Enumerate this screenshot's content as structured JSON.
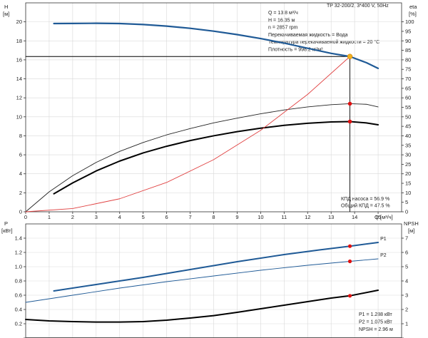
{
  "chart_data": [
    {
      "type": "line",
      "header": "TP 32-200/2, 3*400 V, 50Hz",
      "left_axis_label": "H",
      "left_axis_unit": "[м]",
      "right_axis_label": "eta",
      "right_axis_unit": "[%]",
      "xlabel": "Q [м³/ч]",
      "xlim": [
        0,
        16
      ],
      "ylim_left": [
        0,
        22
      ],
      "ylim_right": [
        0,
        110
      ],
      "x_ticks": [
        0,
        1,
        2,
        3,
        4,
        5,
        6,
        7,
        8,
        9,
        10,
        11,
        12,
        13,
        14,
        15
      ],
      "left_ticks": [
        0,
        2,
        4,
        6,
        8,
        10,
        12,
        14,
        16,
        18,
        20
      ],
      "right_ticks": [
        0,
        5,
        10,
        15,
        20,
        25,
        30,
        35,
        40,
        45,
        50,
        55,
        60,
        65,
        70,
        75,
        80,
        85,
        90,
        95,
        100
      ],
      "info": [
        "Q = 13.8 м³/ч",
        "H = 16.35 м",
        "n = 2857 rpm",
        "Перекачиваемая жидкость = Вода",
        "Температура перекачиваемой жидкости = 20 °C",
        "Плотность = 998.2 кг/м³"
      ],
      "efficiency_notes": [
        "КПД насоса = 56.9 %",
        "Общий КПД = 47.5 %"
      ],
      "operating_point": {
        "x": 13.8,
        "h": 16.35
      },
      "series": [
        {
          "color": "#1f5a96",
          "axis": "left",
          "style": "pump-curve",
          "x": [
            1.2,
            2,
            3,
            4,
            5,
            6,
            7,
            8,
            9,
            10,
            11,
            12,
            13,
            13.8,
            14.5,
            15
          ],
          "y": [
            19.82,
            19.83,
            19.85,
            19.82,
            19.72,
            19.55,
            19.32,
            19.02,
            18.66,
            18.24,
            17.76,
            17.22,
            16.68,
            16.35,
            15.7,
            15.1
          ]
        },
        {
          "color": "#222222",
          "axis": "right",
          "style": "thin",
          "x": [
            0,
            1,
            2,
            3,
            4,
            5,
            6,
            7,
            8,
            9,
            10,
            11,
            12,
            13,
            13.8,
            14.5,
            15
          ],
          "y": [
            0,
            10.5,
            19,
            26,
            31.8,
            36.5,
            40.5,
            43.8,
            46.8,
            49.3,
            51.6,
            53.6,
            55.2,
            56.4,
            56.9,
            56.6,
            55.2
          ]
        },
        {
          "color": "#000000",
          "axis": "right",
          "style": "thick",
          "x": [
            1.2,
            2,
            3,
            4,
            5,
            6,
            7,
            8,
            9,
            10,
            11,
            12,
            13,
            13.8,
            14.5,
            15
          ],
          "y": [
            9.5,
            15.2,
            21.5,
            26.7,
            31,
            34.5,
            37.5,
            40,
            42.2,
            44,
            45.5,
            46.6,
            47.3,
            47.5,
            46.8,
            45.8
          ]
        },
        {
          "color": "#e04040",
          "axis": "left",
          "style": "system-curve",
          "x": [
            0,
            2,
            4,
            6,
            8,
            10,
            12,
            13.8
          ],
          "y": [
            0,
            0.34,
            1.37,
            3.09,
            5.49,
            8.58,
            12.36,
            16.35
          ]
        }
      ],
      "markers_right": [
        {
          "x": 13.8,
          "y": 56.9
        },
        {
          "x": 13.8,
          "y": 47.5
        }
      ]
    },
    {
      "type": "line",
      "left_axis_label": "P",
      "left_axis_unit": "[кВт]",
      "right_axis_label": "NPSH",
      "right_axis_unit": "[м]",
      "xlim": [
        0,
        16
      ],
      "ylim_left": [
        0,
        1.6
      ],
      "ylim_right": [
        0,
        8
      ],
      "left_ticks": [
        0,
        0.2,
        0.4,
        0.6,
        0.8,
        1.0,
        1.2,
        1.4
      ],
      "left_tick_labels": [
        "0",
        "0.2",
        "0.4",
        "0.6",
        "0.8",
        "1.0",
        "1.2",
        "1.4"
      ],
      "right_ticks": [
        0,
        1,
        2,
        3,
        4,
        5,
        6,
        7
      ],
      "power_notes": [
        "P1 = 1.288 кВт",
        "P2 = 1.075 кВт",
        "NPSH = 2.96 м"
      ],
      "series": [
        {
          "name": "P1",
          "color": "#1f5a96",
          "axis": "left",
          "style": "thick",
          "x": [
            1.2,
            3,
            5,
            7,
            9,
            11,
            12.5,
            13.8,
            15
          ],
          "y": [
            0.66,
            0.75,
            0.85,
            0.96,
            1.07,
            1.17,
            1.235,
            1.288,
            1.34
          ]
        },
        {
          "name": "P2",
          "color": "#1f5a96",
          "axis": "left",
          "style": "thin",
          "x": [
            0,
            2,
            4,
            6,
            8,
            10,
            12,
            13.8,
            15
          ],
          "y": [
            0.5,
            0.6,
            0.7,
            0.79,
            0.87,
            0.95,
            1.02,
            1.075,
            1.11
          ]
        },
        {
          "color": "#000000",
          "axis": "right",
          "style": "thick",
          "x": [
            0,
            1,
            2,
            3,
            4,
            5,
            6,
            7,
            8,
            9,
            10,
            11,
            12,
            13,
            13.8,
            15
          ],
          "y": [
            1.3,
            1.2,
            1.15,
            1.12,
            1.12,
            1.15,
            1.25,
            1.4,
            1.57,
            1.8,
            2.05,
            2.3,
            2.55,
            2.8,
            2.96,
            3.35
          ]
        }
      ],
      "markers_left": [
        {
          "x": 13.8,
          "y": 1.288
        },
        {
          "x": 13.8,
          "y": 1.075
        }
      ],
      "markers_right": [
        {
          "x": 13.8,
          "y": 2.96
        }
      ]
    }
  ]
}
